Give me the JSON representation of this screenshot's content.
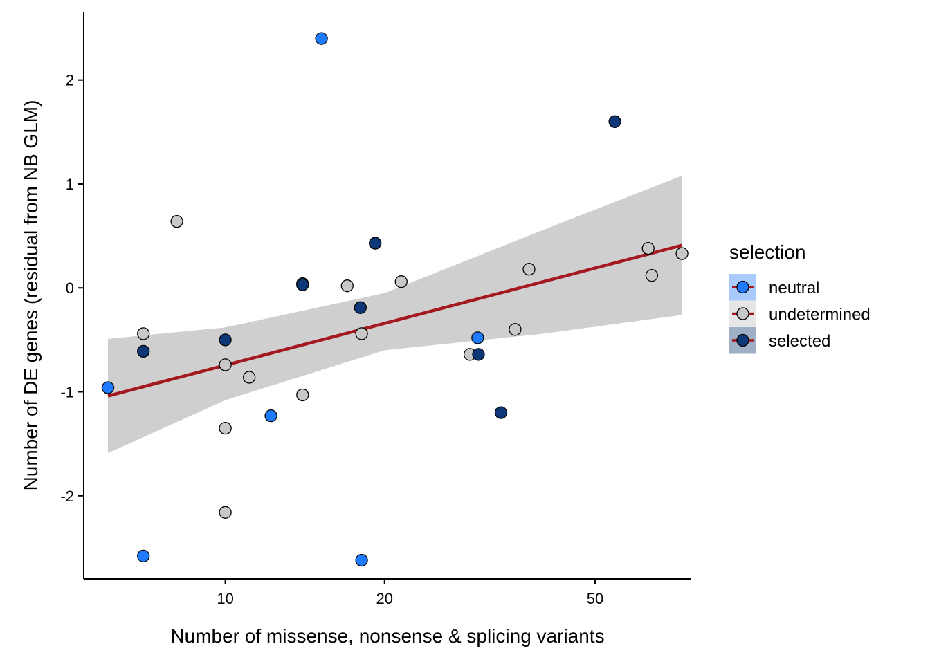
{
  "chart_data": {
    "type": "scatter",
    "xlabel": "Number of missense, nonsense & splicing variants",
    "ylabel": "Number of DE genes (residual from NB GLM)",
    "x_scale": "log10",
    "xlim": [
      5.4,
      76
    ],
    "ylim": [
      -2.8,
      2.65
    ],
    "x_ticks": [
      10,
      20,
      50
    ],
    "x_tick_labels": [
      "10",
      "20",
      "50"
    ],
    "y_ticks": [
      -2,
      -1,
      0,
      1,
      2
    ],
    "y_tick_labels": [
      "-2",
      "-1",
      "0",
      "1",
      "2"
    ],
    "grid": false,
    "legend": {
      "title": "selection",
      "position": "right",
      "entries": [
        {
          "label": "neutral",
          "color": "#1E7BFF",
          "key_fill": "#A9CBFB"
        },
        {
          "label": "undetermined",
          "color": "#C8C8C8",
          "key_fill": "#E6E6E6"
        },
        {
          "label": "selected",
          "color": "#0D3777",
          "key_fill": "#9FAFC6"
        }
      ]
    },
    "colors": {
      "neutral": "#1E7BFF",
      "undetermined": "#C8C8C8",
      "selected": "#0D3777",
      "fit_line": "#A4191F",
      "confidence_band": "#CFCFCF"
    },
    "series": [
      {
        "name": "neutral",
        "points": [
          {
            "x": 6,
            "y": -0.96
          },
          {
            "x": 7,
            "y": -2.58
          },
          {
            "x": 12.2,
            "y": -1.23
          },
          {
            "x": 15.2,
            "y": 2.4
          },
          {
            "x": 18.1,
            "y": -2.62
          },
          {
            "x": 30,
            "y": -0.48
          }
        ]
      },
      {
        "name": "undetermined",
        "points": [
          {
            "x": 7,
            "y": -0.44
          },
          {
            "x": 8.1,
            "y": 0.64
          },
          {
            "x": 10,
            "y": -0.74
          },
          {
            "x": 10,
            "y": -1.35
          },
          {
            "x": 10,
            "y": -2.16
          },
          {
            "x": 11.1,
            "y": -0.86
          },
          {
            "x": 14,
            "y": 0.04
          },
          {
            "x": 14,
            "y": -1.03
          },
          {
            "x": 17,
            "y": 0.02
          },
          {
            "x": 18.1,
            "y": -0.44
          },
          {
            "x": 21.5,
            "y": 0.06
          },
          {
            "x": 29,
            "y": -0.64
          },
          {
            "x": 35.3,
            "y": -0.4
          },
          {
            "x": 37.5,
            "y": 0.18
          },
          {
            "x": 63,
            "y": 0.38
          },
          {
            "x": 64,
            "y": 0.12
          },
          {
            "x": 73,
            "y": 0.33
          }
        ]
      },
      {
        "name": "selected",
        "points": [
          {
            "x": 7,
            "y": -0.61
          },
          {
            "x": 10,
            "y": -0.5
          },
          {
            "x": 14,
            "y": 0.03
          },
          {
            "x": 18,
            "y": -0.19
          },
          {
            "x": 19.2,
            "y": 0.43
          },
          {
            "x": 30.1,
            "y": -0.64
          },
          {
            "x": 33.2,
            "y": -1.2
          },
          {
            "x": 54.5,
            "y": 1.6
          }
        ]
      }
    ],
    "fit": {
      "x": [
        6,
        10,
        20,
        40,
        73
      ],
      "y": [
        -1.04,
        -0.73,
        -0.31,
        0.09,
        0.41
      ],
      "lower": [
        -1.59,
        -1.08,
        -0.6,
        -0.44,
        -0.26
      ],
      "upper": [
        -0.49,
        -0.38,
        -0.05,
        0.56,
        1.08
      ]
    }
  }
}
